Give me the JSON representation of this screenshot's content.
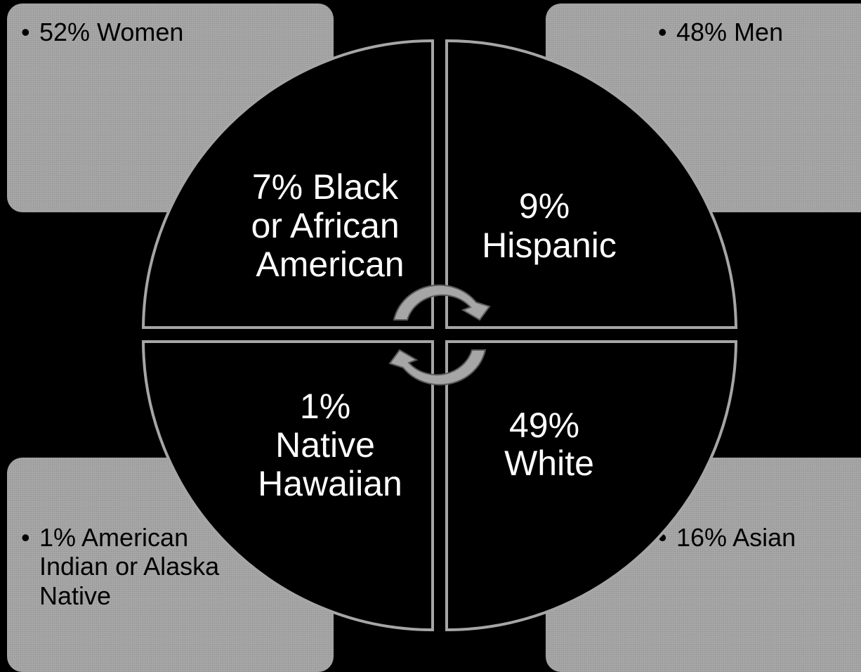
{
  "corners": {
    "top_left": {
      "bullet": "•",
      "text": "52% Women"
    },
    "top_right": {
      "bullet": "•",
      "text": "48% Men"
    },
    "bottom_left": {
      "bullet": "•",
      "text": "1% American Indian or Alaska Native"
    },
    "bottom_right": {
      "bullet": "•",
      "text": "16% Asian"
    }
  },
  "quadrants": {
    "top_left": {
      "lines": [
        "7% Black",
        "or African",
        "American"
      ]
    },
    "top_right": {
      "lines": [
        "9%",
        "Hispanic"
      ]
    },
    "bottom_left": {
      "lines": [
        "1%",
        "Native",
        "Hawaiian"
      ]
    },
    "bottom_right": {
      "lines": [
        "49%",
        "White"
      ]
    }
  },
  "colors": {
    "background": "#000000",
    "corner_fill": "#a6a6a6",
    "quadrant_fill": "#000000",
    "quadrant_border": "#a6a6a6",
    "arrow_fill": "#a6a6a6",
    "text_light": "#ffffff",
    "text_dark": "#000000"
  },
  "icons": {
    "cycle_arrows": "circular-arrows-icon"
  }
}
